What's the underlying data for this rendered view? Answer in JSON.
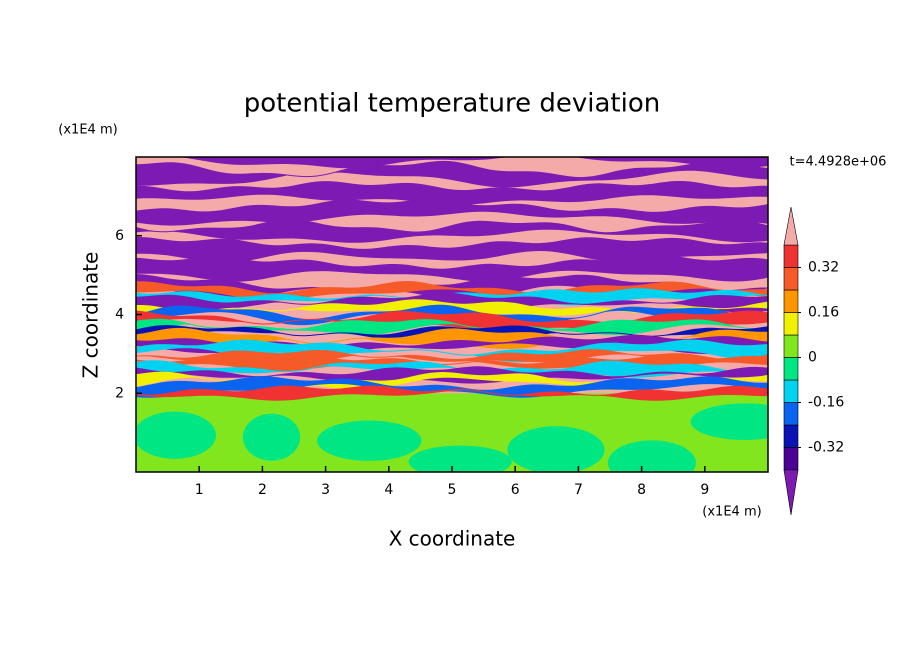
{
  "chart_data": {
    "type": "contour",
    "title": "potential temperature deviation",
    "x_label": "X coordinate",
    "y_label": "Z coordinate",
    "x_unit": "(x1E4 m)",
    "y_unit": "(x1E4 m)",
    "time_label": "t=4.4928e+06",
    "xlim": [
      0,
      10
    ],
    "xticks": [
      1,
      2,
      3,
      4,
      5,
      6,
      7,
      8,
      9
    ],
    "ylim": [
      0,
      8
    ],
    "yticks": [
      2,
      4,
      6
    ],
    "colorbar": {
      "levels": [
        -0.4,
        -0.32,
        -0.24,
        -0.16,
        -0.08,
        0,
        0.08,
        0.16,
        0.24,
        0.32,
        0.4
      ],
      "colors": [
        "#7d1ab4",
        "#4b0096",
        "#0a14b4",
        "#0a64f0",
        "#00d2f0",
        "#00e682",
        "#82e61e",
        "#f0f000",
        "#ff9600",
        "#f55a28",
        "#f03232",
        "#f5aaaa"
      ],
      "ticks": [
        0.32,
        0.16,
        0,
        -0.16,
        -0.32
      ]
    }
  }
}
